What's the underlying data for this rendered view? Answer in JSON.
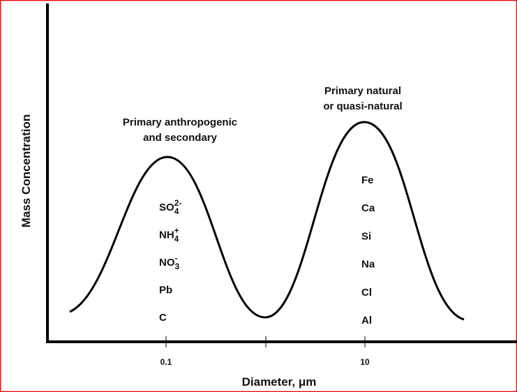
{
  "axes": {
    "y_label": "Mass Concentration",
    "x_label": "Diameter, μm",
    "x_tick_labels": [
      "0.1",
      "10"
    ]
  },
  "peaks": [
    {
      "label": [
        "Primary anthropogenic",
        "and secondary"
      ],
      "species": [
        {
          "base": "SO",
          "sub": "4",
          "sup": "2-"
        },
        {
          "base": "NH",
          "sub": "4",
          "sup": "+"
        },
        {
          "base": "NO",
          "sub": "3",
          "sup": "-"
        },
        {
          "base": "Pb"
        },
        {
          "base": "C"
        }
      ]
    },
    {
      "label": [
        "Primary natural",
        "or quasi-natural"
      ],
      "species": [
        {
          "base": "Fe"
        },
        {
          "base": "Ca"
        },
        {
          "base": "Si"
        },
        {
          "base": "Na"
        },
        {
          "base": "Cl"
        },
        {
          "base": "Al"
        }
      ]
    }
  ]
}
